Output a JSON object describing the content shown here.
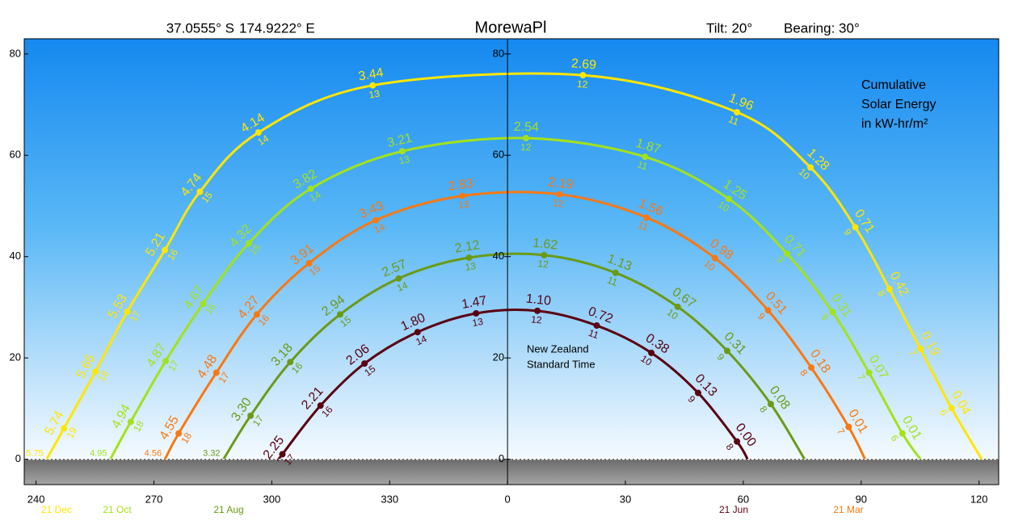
{
  "header": {
    "latitude": "37.0555° S",
    "longitude": "174.9222° E",
    "tilt": "Tilt:  20°",
    "bearing": "Bearing:  30°"
  },
  "chart_data": {
    "type": "line",
    "title": "MorewaPl",
    "annotations": {
      "energy": [
        "Cumulative",
        "Solar Energy",
        "in kW-hr/m²"
      ],
      "timezone": [
        "New Zealand",
        "Standard Time"
      ]
    },
    "xlim": [
      237,
      485
    ],
    "ylim": [
      -5,
      83
    ],
    "xticks": [
      240,
      270,
      300,
      330,
      {
        "value": 360,
        "label": "0"
      },
      {
        "value": 390,
        "label": "30"
      },
      {
        "value": 420,
        "label": "60"
      },
      {
        "value": 450,
        "label": "90"
      },
      {
        "value": 480,
        "label": "120"
      }
    ],
    "yticks": [
      0,
      20,
      40,
      60,
      80
    ],
    "series": [
      {
        "name": "21 Dec",
        "color": "#ffe600",
        "x": [
          242.7,
          247.1,
          255.1,
          263.2,
          272.8,
          281.7,
          296.6,
          325.7,
          379.2,
          418.4,
          437.1,
          448.5,
          457.2,
          465.1,
          473.0,
          480.7
        ],
        "y": [
          0,
          6.1,
          17.3,
          29.1,
          41.3,
          52.8,
          64.5,
          73.8,
          75.8,
          68.5,
          57.6,
          45.8,
          33.6,
          21.8,
          10.1,
          0
        ],
        "values": [
          5.75,
          5.74,
          5.66,
          5.53,
          5.21,
          4.74,
          4.14,
          3.44,
          2.69,
          1.96,
          1.28,
          0.71,
          0.42,
          0.19,
          0.04,
          null
        ],
        "value_labels": [
          "5.75",
          "5.74",
          "5.66",
          "5.53",
          "5.21",
          "4.74",
          "4.14",
          "3.44",
          "2.69",
          "1.96",
          "1.28",
          "0.71",
          "0.42",
          "0.19",
          "0.04",
          null
        ],
        "hours": [
          null,
          19,
          18,
          17,
          16,
          15,
          14,
          13,
          12,
          11,
          10,
          9,
          8,
          7,
          6,
          null
        ]
      },
      {
        "name": "21 Oct",
        "color": "#a3e21a",
        "x": [
          258.9,
          264.1,
          273.0,
          282.5,
          294.1,
          309.9,
          333.2,
          364.7,
          395.0,
          416.3,
          431.1,
          442.7,
          452.0,
          460.5,
          465.1
        ],
        "y": [
          0,
          7.4,
          19.4,
          30.7,
          42.6,
          53.4,
          60.8,
          63.4,
          59.7,
          51.4,
          40.6,
          29.1,
          17.1,
          5.1,
          0
        ],
        "values": [
          4.95,
          4.94,
          4.87,
          4.67,
          4.32,
          3.82,
          3.21,
          2.54,
          1.87,
          1.25,
          0.71,
          0.31,
          0.07,
          0.01,
          null
        ],
        "value_labels": [
          "4.95",
          "4.94",
          "4.87",
          "4.67",
          "4.32",
          "3.82",
          "3.21",
          "2.54",
          "1.87",
          "1.25",
          "0.71",
          "0.31",
          "0.07",
          "0.01",
          null
        ],
        "hours": [
          null,
          18,
          17,
          16,
          15,
          14,
          13,
          12,
          11,
          10,
          9,
          8,
          7,
          6,
          null
        ]
      },
      {
        "name": "21 Mar",
        "color": "#f97812",
        "x": [
          272.8,
          276.3,
          285.9,
          296.2,
          309.5,
          326.5,
          348.5,
          373.2,
          395.4,
          412.8,
          426.3,
          437.3,
          446.8,
          451.0
        ],
        "y": [
          0,
          5.1,
          17.1,
          28.6,
          38.7,
          47.2,
          52.0,
          52.3,
          47.7,
          39.7,
          29.4,
          18.1,
          6.4,
          0
        ],
        "values": [
          4.56,
          4.55,
          4.48,
          4.27,
          3.91,
          3.43,
          2.83,
          2.19,
          1.56,
          0.98,
          0.51,
          0.18,
          0.01,
          null
        ],
        "value_labels": [
          "4.56",
          "4.55",
          "4.48",
          "4.27",
          "3.91",
          "3.43",
          "2.83",
          "2.19",
          "1.56",
          "0.98",
          "0.51",
          "0.18",
          "0.01",
          null
        ],
        "hours": [
          null,
          18,
          17,
          16,
          15,
          14,
          13,
          12,
          11,
          10,
          9,
          8,
          7,
          null
        ]
      },
      {
        "name": "21 Aug",
        "color": "#6b9a16",
        "x": [
          287.7,
          294.6,
          304.7,
          317.4,
          332.3,
          350.2,
          369.3,
          387.5,
          403.3,
          415.9,
          427.0,
          435.6
        ],
        "y": [
          0,
          8.6,
          19.2,
          28.6,
          35.7,
          39.8,
          40.3,
          36.8,
          30.1,
          21.4,
          10.9,
          0
        ],
        "values": [
          3.32,
          3.3,
          3.18,
          2.94,
          2.57,
          2.12,
          1.62,
          1.13,
          0.67,
          0.31,
          0.08,
          null
        ],
        "value_labels": [
          "3.32",
          "3.30",
          "3.18",
          "2.94",
          "2.57",
          "2.12",
          "1.62",
          "1.13",
          "0.67",
          "0.31",
          "0.08",
          null
        ],
        "hours": [
          null,
          17,
          16,
          15,
          14,
          13,
          12,
          11,
          10,
          9,
          8,
          null
        ]
      },
      {
        "name": "21 Jun",
        "color": "#5a0012",
        "x": [
          301.8,
          302.7,
          312.4,
          323.6,
          337.1,
          352.0,
          367.6,
          382.7,
          396.6,
          408.5,
          418.4,
          421.1
        ],
        "y": [
          0,
          1.0,
          10.6,
          18.9,
          25.1,
          28.8,
          29.3,
          26.4,
          21.0,
          13.1,
          3.5,
          0
        ],
        "values": [
          null,
          2.25,
          2.21,
          2.06,
          1.8,
          1.47,
          1.1,
          0.72,
          0.38,
          0.13,
          0.0,
          null
        ],
        "value_labels": [
          null,
          "2.25",
          "2.21",
          "2.06",
          "1.80",
          "1.47",
          "1.10",
          "0.72",
          "0.38",
          "0.13",
          "0.00",
          null
        ],
        "hours": [
          null,
          17,
          16,
          15,
          14,
          13,
          12,
          11,
          10,
          9,
          8,
          null
        ]
      }
    ]
  }
}
